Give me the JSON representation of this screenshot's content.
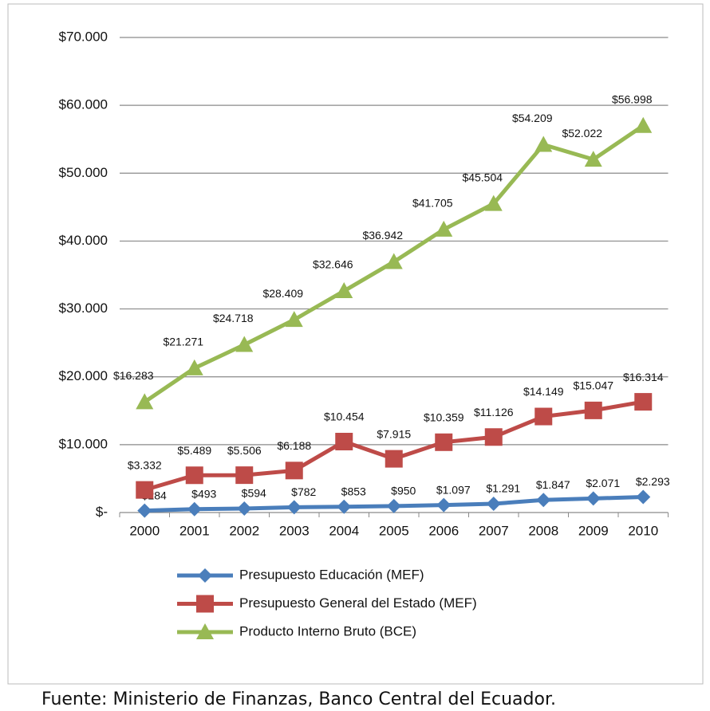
{
  "chart_data": {
    "type": "line",
    "categories": [
      "2000",
      "2001",
      "2002",
      "2003",
      "2004",
      "2005",
      "2006",
      "2007",
      "2008",
      "2009",
      "2010"
    ],
    "series": [
      {
        "name": "Presupuesto Educación (MEF)",
        "color": "#4a7ebb",
        "marker": "diamond",
        "values": [
          284,
          493,
          594,
          782,
          853,
          950,
          1097,
          1291,
          1847,
          2071,
          2293
        ],
        "value_labels": [
          "$284",
          "$493",
          "$594",
          "$782",
          "$853",
          "$950",
          "$1.097",
          "$1.291",
          "$1.847",
          "$2.071",
          "$2.293"
        ]
      },
      {
        "name": "Presupuesto General del Estado (MEF)",
        "color": "#be4b48",
        "marker": "square",
        "values": [
          3332,
          5489,
          5506,
          6188,
          10454,
          7915,
          10359,
          11126,
          14149,
          15047,
          16314
        ],
        "value_labels": [
          "$3.332",
          "$5.489",
          "$5.506",
          "$6.188",
          "$10.454",
          "$7.915",
          "$10.359",
          "$11.126",
          "$14.149",
          "$15.047",
          "$16.314"
        ]
      },
      {
        "name": "Producto Interno Bruto (BCE)",
        "color": "#98b954",
        "marker": "triangle",
        "values": [
          16283,
          21271,
          24718,
          28409,
          32646,
          36942,
          41705,
          45504,
          54209,
          52022,
          56998
        ],
        "value_labels": [
          "$16.283",
          "$21.271",
          "$24.718",
          "$28.409",
          "$32.646",
          "$36.942",
          "$41.705",
          "$45.504",
          "$54.209",
          "$52.022",
          "$56.998"
        ]
      }
    ],
    "ylim": [
      0,
      70000
    ],
    "yticks": [
      {
        "value": 0,
        "label": "$-"
      },
      {
        "value": 10000,
        "label": "$10.000"
      },
      {
        "value": 20000,
        "label": "$20.000"
      },
      {
        "value": 30000,
        "label": "$30.000"
      },
      {
        "value": 40000,
        "label": "$40.000"
      },
      {
        "value": 50000,
        "label": "$50.000"
      },
      {
        "value": 60000,
        "label": "$60.000"
      },
      {
        "value": 70000,
        "label": "$70.000"
      }
    ],
    "grid": true,
    "legend": "bottom",
    "source": "Fuente: Ministerio de Finanzas, Banco Central del Ecuador."
  }
}
